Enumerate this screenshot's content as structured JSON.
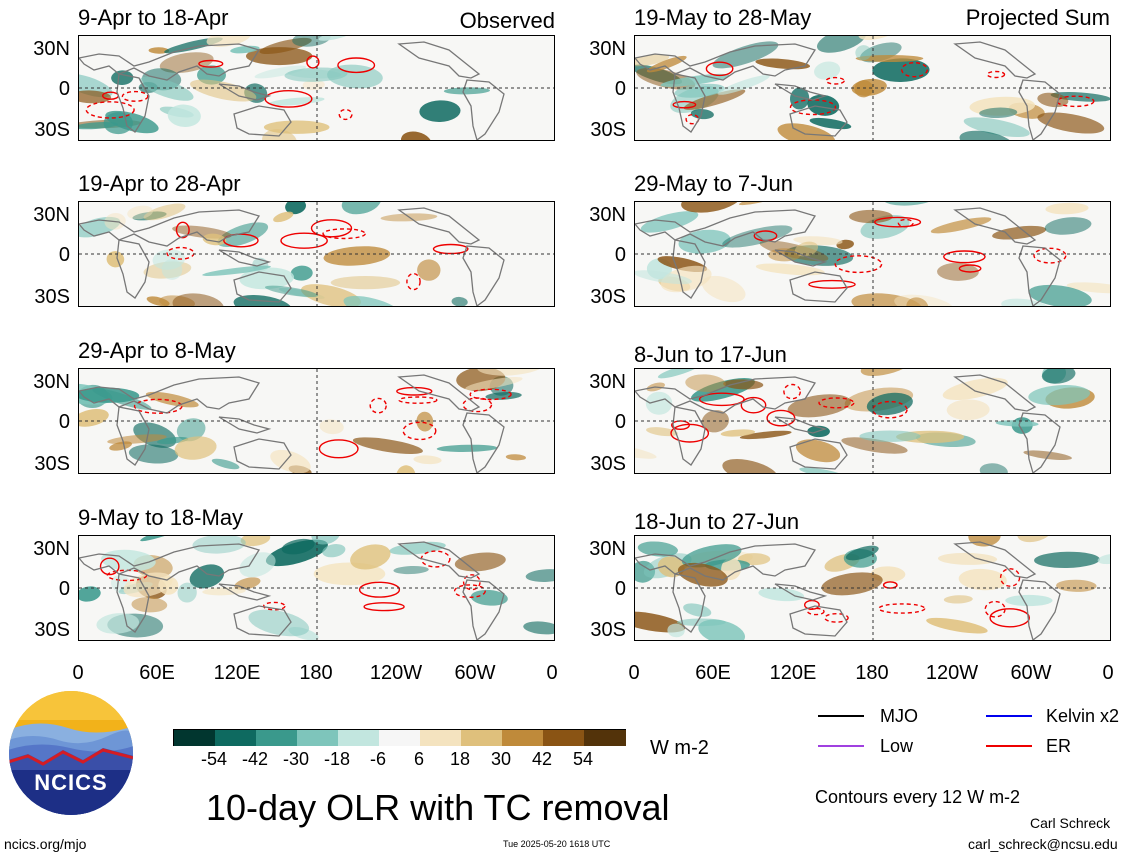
{
  "panels": [
    {
      "title": "9-Apr to 18-Apr",
      "corner": "Observed"
    },
    {
      "title": "19-Apr to 28-Apr",
      "corner": ""
    },
    {
      "title": "29-Apr to 8-May",
      "corner": ""
    },
    {
      "title": "9-May to 18-May",
      "corner": ""
    },
    {
      "title": "19-May to 28-May",
      "corner": "Projected Sum"
    },
    {
      "title": "29-May to 7-Jun",
      "corner": ""
    },
    {
      "title": "8-Jun to 17-Jun",
      "corner": ""
    },
    {
      "title": "18-Jun to 27-Jun",
      "corner": ""
    }
  ],
  "y_ticks": [
    "30N",
    "0",
    "30S"
  ],
  "x_ticks": [
    "0",
    "60E",
    "120E",
    "180",
    "120W",
    "60W",
    "0"
  ],
  "colorbar": {
    "labels": [
      "-54",
      "-42",
      "-30",
      "-18",
      "-6",
      "6",
      "18",
      "30",
      "42",
      "54"
    ],
    "colors": [
      "#01362f",
      "#0e6a60",
      "#3a998c",
      "#7ec5bb",
      "#c2e6df",
      "#f6f6f6",
      "#f4e3bf",
      "#dfc07c",
      "#bf8a3a",
      "#8a5414",
      "#53330a"
    ],
    "units": "W m-2"
  },
  "legend": {
    "mjo": "MJO",
    "kelvin": "Kelvin x2",
    "low": "Low",
    "er": "ER",
    "mjo_color": "#000000",
    "kelvin_color": "#0000ee",
    "low_color": "#a040e0",
    "er_color": "#ee0000"
  },
  "contours_note": "Contours every 12 W m-2",
  "main_title": "10-day OLR with TC removal",
  "logo_text": "NCICS",
  "url": "ncics.org/mjo",
  "timestamp": "Tue 2025-05-20 1618 UTC",
  "author": "Carl Schreck",
  "email": "carl_schreck@ncsu.edu"
}
